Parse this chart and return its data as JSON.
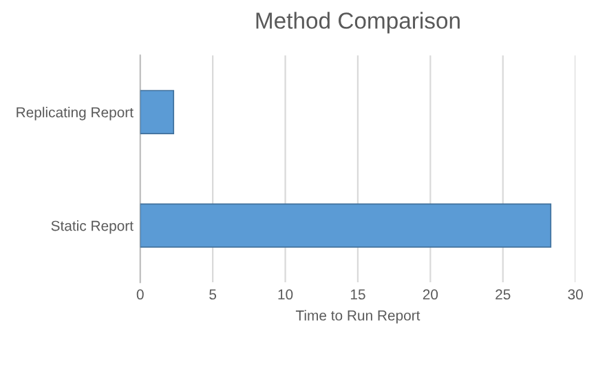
{
  "chart_data": {
    "type": "bar",
    "orientation": "horizontal",
    "title": "Method Comparison",
    "xlabel": "Time to Run Report",
    "categories": [
      "Replicating Report",
      "Static Report"
    ],
    "values": [
      2.3,
      28.3
    ],
    "color": "#5b9bd5",
    "xlim": [
      0,
      30
    ],
    "xticks": [
      0,
      5,
      10,
      15,
      20,
      25,
      30
    ],
    "grid": "x",
    "legend": false
  }
}
